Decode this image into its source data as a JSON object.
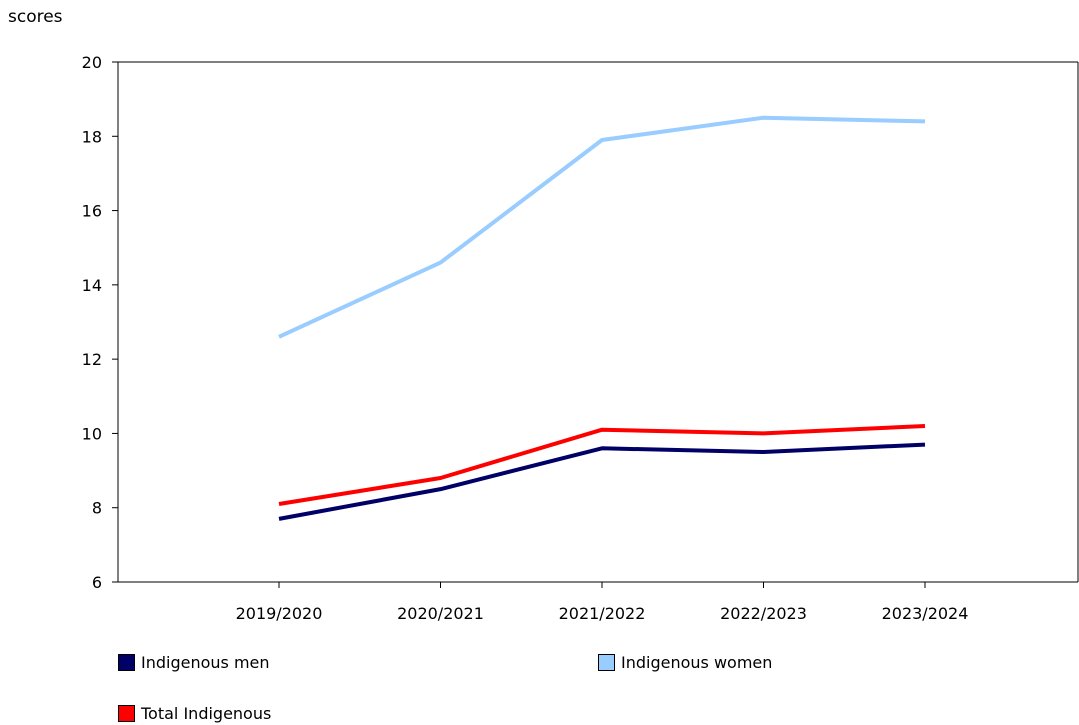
{
  "chart_data": {
    "type": "line",
    "ylabel": "scores",
    "xlabel": "",
    "ylim": [
      6,
      20
    ],
    "yticks": [
      6,
      8,
      10,
      12,
      14,
      16,
      18,
      20
    ],
    "categories": [
      "2019/2020",
      "2020/2021",
      "2021/2022",
      "2022/2023",
      "2023/2024"
    ],
    "series": [
      {
        "name": "Indigenous men",
        "color": "#000066",
        "values": [
          7.7,
          8.5,
          9.6,
          9.5,
          9.7
        ]
      },
      {
        "name": "Indigenous women",
        "color": "#99CCFF",
        "values": [
          12.6,
          14.6,
          17.9,
          18.5,
          18.4
        ]
      },
      {
        "name": "Total Indigenous",
        "color": "#FF0000",
        "values": [
          8.1,
          8.8,
          10.1,
          10.0,
          10.2
        ]
      }
    ],
    "grid": false,
    "legend_position": "bottom"
  }
}
